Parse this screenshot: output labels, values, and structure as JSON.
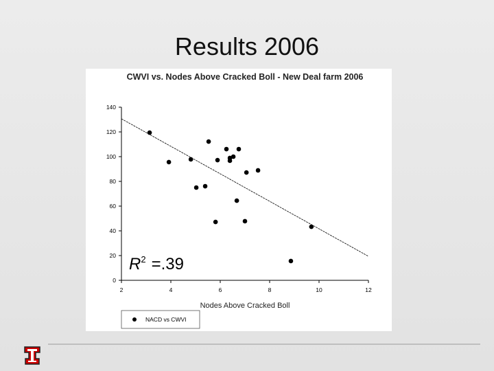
{
  "slide_title": "Results 2006",
  "chart_data": {
    "type": "scatter",
    "title": "CWVI vs. Nodes Above Cracked Boll - New Deal farm 2006",
    "x_label": "Nodes Above Cracked Boll",
    "series": [
      {
        "name": "NACD vs CWVI",
        "color": "#000000",
        "x": [
          3.14,
          3.92,
          4.81,
          5.03,
          5.39,
          5.53,
          5.81,
          5.89,
          6.25,
          6.39,
          6.39,
          6.53,
          6.67,
          6.75,
          7.0,
          7.06,
          7.53,
          8.86,
          9.69
        ],
        "values": [
          119.4,
          95.6,
          97.8,
          75,
          76.1,
          112.2,
          47.2,
          97.2,
          106.1,
          98.9,
          96.7,
          100,
          64.4,
          106.1,
          47.8,
          87.2,
          88.9,
          15.6,
          43.3
        ]
      }
    ],
    "fit_line": {
      "x": [
        2,
        12
      ],
      "y": [
        130.6,
        19.4
      ]
    },
    "annotation": {
      "base": "R",
      "sup": "2",
      "rest": "=.39"
    },
    "xlim": [
      2,
      12
    ],
    "xticks": [
      2,
      4,
      6,
      8,
      10,
      12
    ],
    "ylim": [
      0,
      140
    ],
    "yticks": [
      0,
      20,
      40,
      60,
      80,
      100,
      120,
      140
    ]
  }
}
